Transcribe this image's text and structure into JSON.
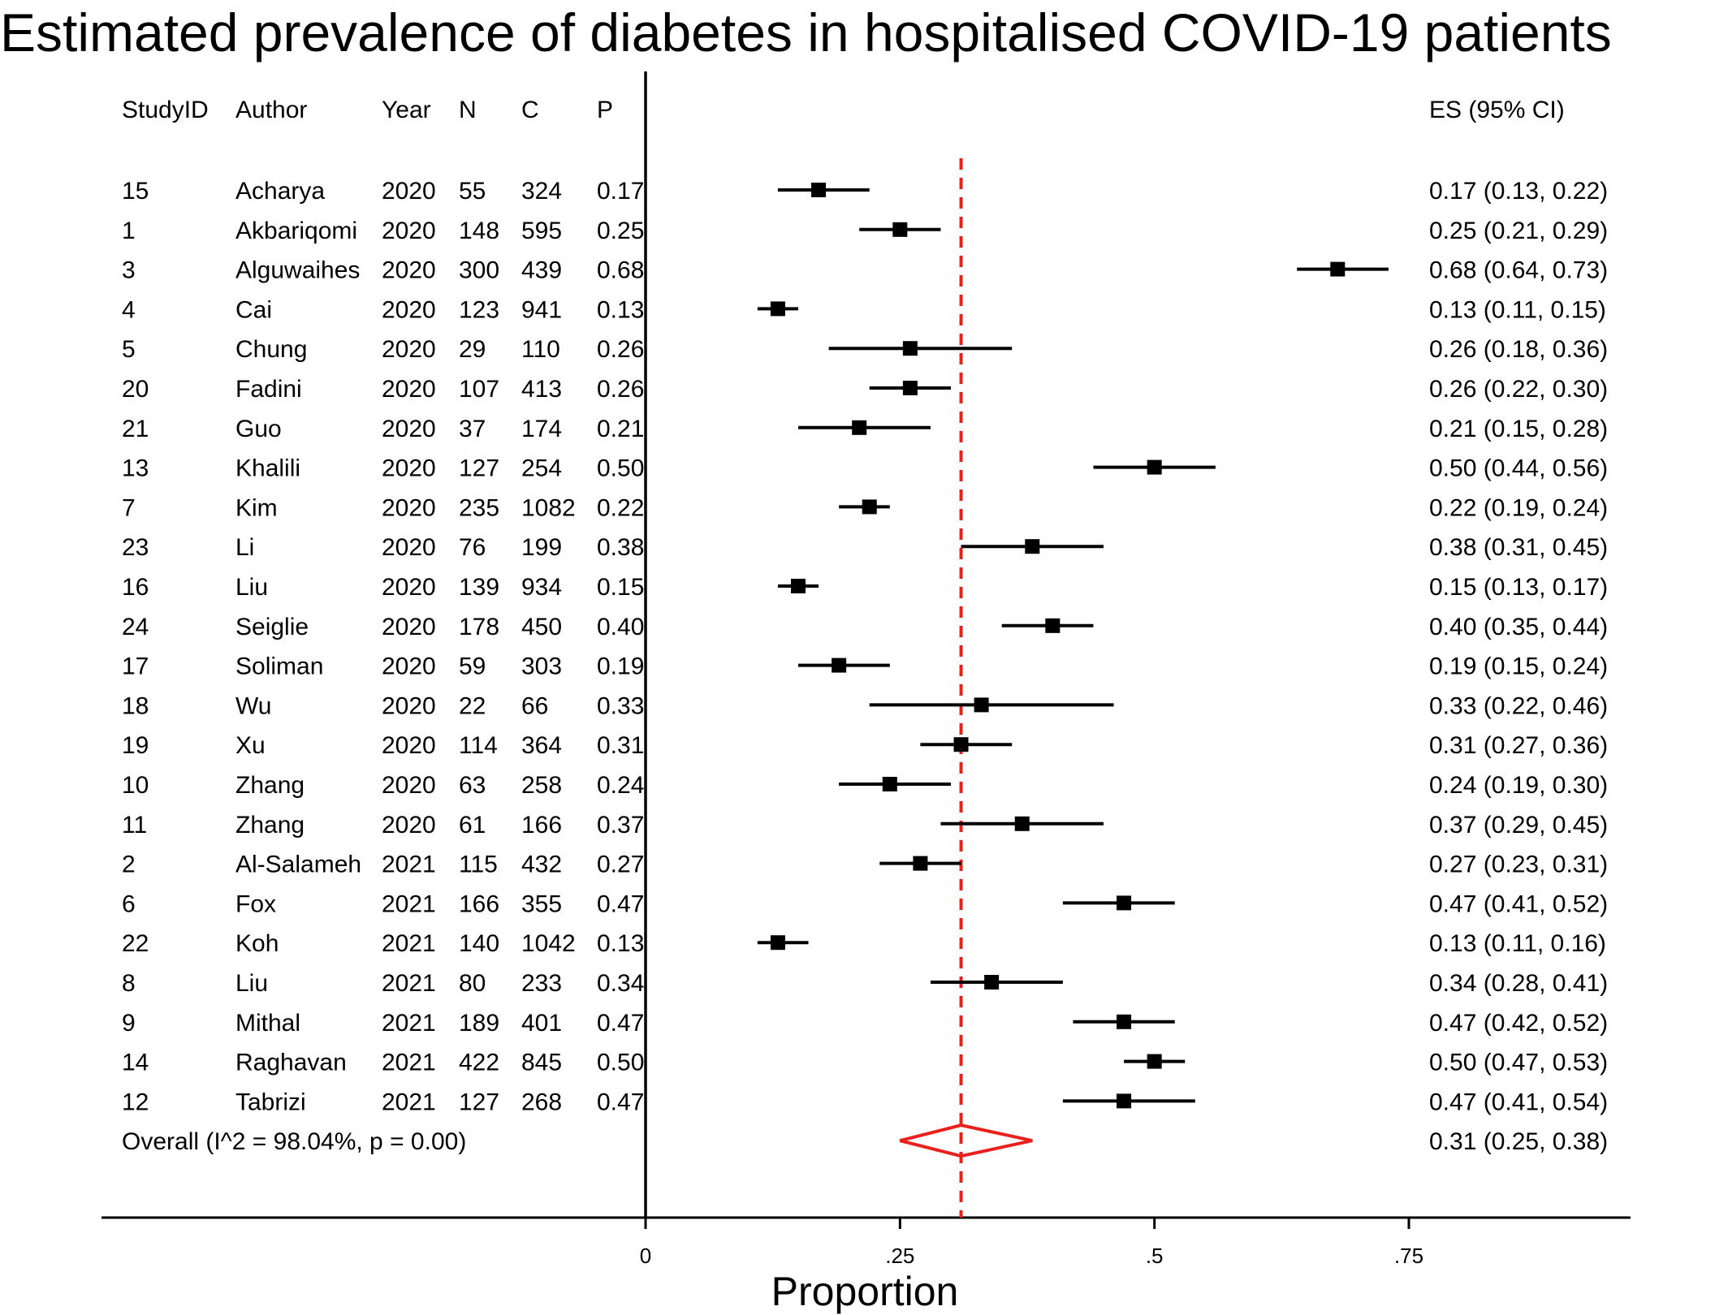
{
  "title": "Estimated prevalence of diabetes in hospitalised COVID-19 patients",
  "headers": {
    "studyid": "StudyID",
    "author": "Author",
    "year": "Year",
    "n": "N",
    "c": "C",
    "p": "P",
    "es": "ES (95% CI)"
  },
  "chart_data": {
    "type": "forest",
    "xlabel": "Proportion",
    "xlim": [
      0,
      0.97
    ],
    "xticks": [
      {
        "value": 0,
        "label": "0"
      },
      {
        "value": 0.25,
        "label": ".25"
      },
      {
        "value": 0.5,
        "label": ".5"
      },
      {
        "value": 0.75,
        "label": ".75"
      }
    ],
    "reference_line": 0.31,
    "studies": [
      {
        "id": "15",
        "author": "Acharya",
        "year": "2020",
        "n": "55",
        "c": "324",
        "p": "0.17",
        "es": 0.17,
        "lo": 0.13,
        "hi": 0.22,
        "es_label": "0.17 (0.13, 0.22)"
      },
      {
        "id": "1",
        "author": "Akbariqomi",
        "year": "2020",
        "n": "148",
        "c": "595",
        "p": "0.25",
        "es": 0.25,
        "lo": 0.21,
        "hi": 0.29,
        "es_label": "0.25 (0.21, 0.29)"
      },
      {
        "id": "3",
        "author": "Alguwaihes",
        "year": "2020",
        "n": "300",
        "c": "439",
        "p": "0.68",
        "es": 0.68,
        "lo": 0.64,
        "hi": 0.73,
        "es_label": "0.68 (0.64, 0.73)"
      },
      {
        "id": "4",
        "author": "Cai",
        "year": "2020",
        "n": "123",
        "c": "941",
        "p": "0.13",
        "es": 0.13,
        "lo": 0.11,
        "hi": 0.15,
        "es_label": "0.13 (0.11, 0.15)"
      },
      {
        "id": "5",
        "author": "Chung",
        "year": "2020",
        "n": "29",
        "c": "110",
        "p": "0.26",
        "es": 0.26,
        "lo": 0.18,
        "hi": 0.36,
        "es_label": "0.26 (0.18, 0.36)"
      },
      {
        "id": "20",
        "author": "Fadini",
        "year": "2020",
        "n": "107",
        "c": "413",
        "p": "0.26",
        "es": 0.26,
        "lo": 0.22,
        "hi": 0.3,
        "es_label": "0.26 (0.22, 0.30)"
      },
      {
        "id": "21",
        "author": "Guo",
        "year": "2020",
        "n": "37",
        "c": "174",
        "p": "0.21",
        "es": 0.21,
        "lo": 0.15,
        "hi": 0.28,
        "es_label": "0.21 (0.15, 0.28)"
      },
      {
        "id": "13",
        "author": "Khalili",
        "year": "2020",
        "n": "127",
        "c": "254",
        "p": "0.50",
        "es": 0.5,
        "lo": 0.44,
        "hi": 0.56,
        "es_label": "0.50 (0.44, 0.56)"
      },
      {
        "id": "7",
        "author": "Kim",
        "year": "2020",
        "n": "235",
        "c": "1082",
        "p": "0.22",
        "es": 0.22,
        "lo": 0.19,
        "hi": 0.24,
        "es_label": "0.22 (0.19, 0.24)"
      },
      {
        "id": "23",
        "author": "Li",
        "year": "2020",
        "n": "76",
        "c": "199",
        "p": "0.38",
        "es": 0.38,
        "lo": 0.31,
        "hi": 0.45,
        "es_label": "0.38 (0.31, 0.45)"
      },
      {
        "id": "16",
        "author": "Liu",
        "year": "2020",
        "n": "139",
        "c": "934",
        "p": "0.15",
        "es": 0.15,
        "lo": 0.13,
        "hi": 0.17,
        "es_label": "0.15 (0.13, 0.17)"
      },
      {
        "id": "24",
        "author": "Seiglie",
        "year": "2020",
        "n": "178",
        "c": "450",
        "p": "0.40",
        "es": 0.4,
        "lo": 0.35,
        "hi": 0.44,
        "es_label": "0.40 (0.35, 0.44)"
      },
      {
        "id": "17",
        "author": "Soliman",
        "year": "2020",
        "n": "59",
        "c": "303",
        "p": "0.19",
        "es": 0.19,
        "lo": 0.15,
        "hi": 0.24,
        "es_label": "0.19 (0.15, 0.24)"
      },
      {
        "id": "18",
        "author": "Wu",
        "year": "2020",
        "n": "22",
        "c": "66",
        "p": "0.33",
        "es": 0.33,
        "lo": 0.22,
        "hi": 0.46,
        "es_label": "0.33 (0.22, 0.46)"
      },
      {
        "id": "19",
        "author": "Xu",
        "year": "2020",
        "n": "114",
        "c": "364",
        "p": "0.31",
        "es": 0.31,
        "lo": 0.27,
        "hi": 0.36,
        "es_label": "0.31 (0.27, 0.36)"
      },
      {
        "id": "10",
        "author": "Zhang",
        "year": "2020",
        "n": "63",
        "c": "258",
        "p": "0.24",
        "es": 0.24,
        "lo": 0.19,
        "hi": 0.3,
        "es_label": "0.24 (0.19, 0.30)"
      },
      {
        "id": "11",
        "author": "Zhang",
        "year": "2020",
        "n": "61",
        "c": "166",
        "p": "0.37",
        "es": 0.37,
        "lo": 0.29,
        "hi": 0.45,
        "es_label": "0.37 (0.29, 0.45)"
      },
      {
        "id": "2",
        "author": "Al-Salameh",
        "year": "2021",
        "n": "115",
        "c": "432",
        "p": "0.27",
        "es": 0.27,
        "lo": 0.23,
        "hi": 0.31,
        "es_label": "0.27 (0.23, 0.31)"
      },
      {
        "id": "6",
        "author": "Fox",
        "year": "2021",
        "n": "166",
        "c": "355",
        "p": "0.47",
        "es": 0.47,
        "lo": 0.41,
        "hi": 0.52,
        "es_label": "0.47 (0.41, 0.52)"
      },
      {
        "id": "22",
        "author": "Koh",
        "year": "2021",
        "n": "140",
        "c": "1042",
        "p": "0.13",
        "es": 0.13,
        "lo": 0.11,
        "hi": 0.16,
        "es_label": "0.13 (0.11, 0.16)"
      },
      {
        "id": "8",
        "author": "Liu",
        "year": "2021",
        "n": "80",
        "c": "233",
        "p": "0.34",
        "es": 0.34,
        "lo": 0.28,
        "hi": 0.41,
        "es_label": "0.34 (0.28, 0.41)"
      },
      {
        "id": "9",
        "author": "Mithal",
        "year": "2021",
        "n": "189",
        "c": "401",
        "p": "0.47",
        "es": 0.47,
        "lo": 0.42,
        "hi": 0.52,
        "es_label": "0.47 (0.42, 0.52)"
      },
      {
        "id": "14",
        "author": "Raghavan",
        "year": "2021",
        "n": "422",
        "c": "845",
        "p": "0.50",
        "es": 0.5,
        "lo": 0.47,
        "hi": 0.53,
        "es_label": "0.50 (0.47, 0.53)"
      },
      {
        "id": "12",
        "author": "Tabrizi",
        "year": "2021",
        "n": "127",
        "c": "268",
        "p": "0.47",
        "es": 0.47,
        "lo": 0.41,
        "hi": 0.54,
        "es_label": "0.47 (0.41, 0.54)"
      }
    ],
    "overall": {
      "label": "Overall  (I^2 = 98.04%, p = 0.00)",
      "es": 0.31,
      "lo": 0.25,
      "hi": 0.38,
      "es_label": "0.31 (0.25, 0.38)"
    },
    "colors": {
      "marker": "#000000",
      "overall_diamond": "#e8201e",
      "reference_line": "#e8201e"
    }
  }
}
